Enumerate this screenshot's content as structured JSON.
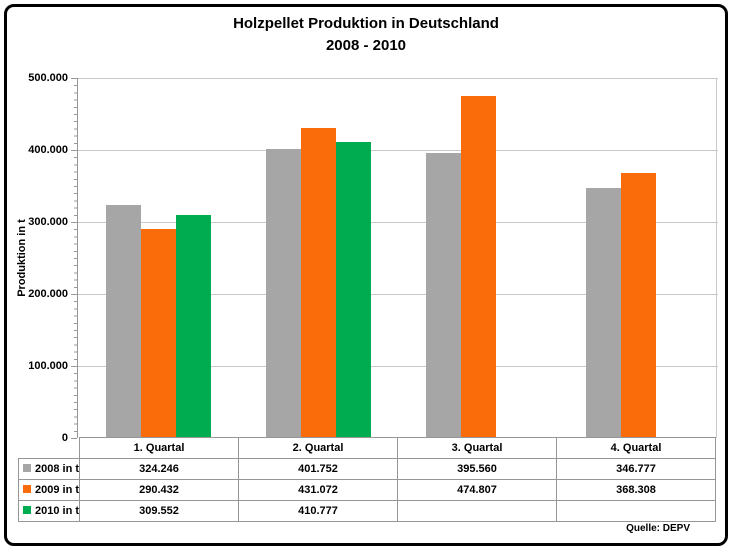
{
  "title": "Holzpellet Produktion in Deutschland",
  "subtitle": "2008 - 2010",
  "source": "Quelle: DEPV",
  "colors": {
    "bar_2008": "#A6A6A6",
    "bar_2009": "#FA6C0A",
    "bar_2010": "#00AC50",
    "gridline": "#C9C9C9",
    "axis": "#979797",
    "table_border": "#969696"
  },
  "y_axis": {
    "label": "Produktion in t",
    "ticks": [
      "500.000",
      "400.000",
      "300.000",
      "200.000",
      "100.000",
      "0"
    ]
  },
  "chart_data": {
    "type": "bar",
    "title": "Holzpellet Produktion in Deutschland 2008 - 2010",
    "categories": [
      "1. Quartal",
      "2. Quartal",
      "3. Quartal",
      "4. Quartal"
    ],
    "series": [
      {
        "name": "2008 in t",
        "color": "#A6A6A6",
        "values": [
          324246,
          401752,
          395560,
          346777
        ],
        "labels": [
          "324.246",
          "401.752",
          "395.560",
          "346.777"
        ]
      },
      {
        "name": "2009 in t",
        "color": "#FA6C0A",
        "values": [
          290432,
          431072,
          474807,
          368308
        ],
        "labels": [
          "290.432",
          "431.072",
          "474.807",
          "368.308"
        ]
      },
      {
        "name": "2010 in t",
        "color": "#00AC50",
        "values": [
          309552,
          410777,
          null,
          null
        ],
        "labels": [
          "309.552",
          "410.777",
          "",
          ""
        ]
      }
    ],
    "xlabel": "",
    "ylabel": "Produktion in t",
    "ylim": [
      0,
      500000
    ],
    "y_major_unit": 100000,
    "y_minor_unit": 10000,
    "grid": true,
    "legend_position": "data-table-left"
  }
}
